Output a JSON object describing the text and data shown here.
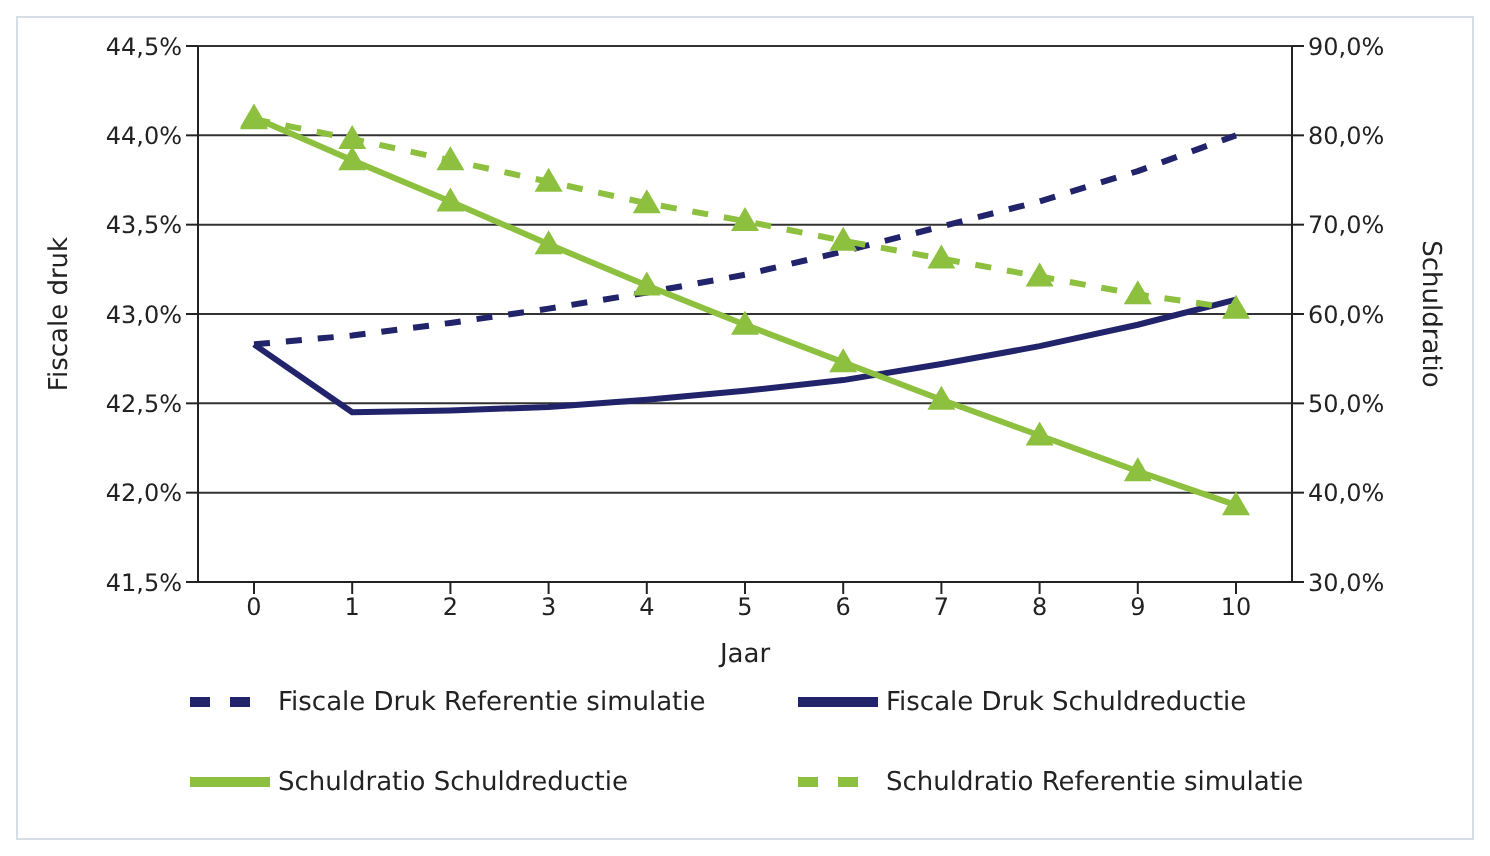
{
  "chart_data": {
    "type": "line",
    "xlabel": "Jaar",
    "ylabel": "Fiscale druk",
    "y2label": "Schuldratio",
    "categories": [
      "0",
      "1",
      "2",
      "3",
      "4",
      "5",
      "6",
      "7",
      "8",
      "9",
      "10"
    ],
    "ylim": [
      41.5,
      44.5
    ],
    "yticks": [
      {
        "value": 41.5,
        "label": "41,5%"
      },
      {
        "value": 42,
        "label": "42,0%"
      },
      {
        "value": 42.5,
        "label": "42,5%"
      },
      {
        "value": 43,
        "label": "43,0%"
      },
      {
        "value": 43.5,
        "label": "43,5%"
      },
      {
        "value": 44,
        "label": "44,0%"
      },
      {
        "value": 44.5,
        "label": "44,5%"
      }
    ],
    "y2lim": [
      30,
      90
    ],
    "y2ticks": [
      {
        "value": 30,
        "label": "30,0%"
      },
      {
        "value": 40,
        "label": "40,0%"
      },
      {
        "value": 50,
        "label": "50,0%"
      },
      {
        "value": 60,
        "label": "60,0%"
      },
      {
        "value": 70,
        "label": "70,0%"
      },
      {
        "value": 80,
        "label": "80,0%"
      },
      {
        "value": 90,
        "label": "90,0%"
      }
    ],
    "grid": "y",
    "legend": "bottom",
    "series": [
      {
        "name": "Fiscale Druk Referentie simulatie",
        "color": "#22246b",
        "line_style": "dashed",
        "marker": "none",
        "values": [
          42.83,
          42.88,
          42.95,
          43.03,
          43.12,
          43.22,
          43.35,
          43.49,
          43.63,
          43.8,
          44.0
        ]
      },
      {
        "name": "Fiscale Druk Schuldreductie",
        "color": "#22246b",
        "line_style": "solid",
        "marker": "none",
        "values": [
          42.83,
          42.45,
          42.46,
          42.48,
          42.52,
          42.57,
          42.63,
          42.72,
          42.82,
          42.94,
          43.08
        ]
      },
      {
        "name": "Schuldratio Schuldreductie",
        "color": "#8dc03f",
        "line_style": "solid",
        "marker": "triangle",
        "axis": "y2",
        "values": [
          82.0,
          77.2,
          72.6,
          67.8,
          63.2,
          58.8,
          54.6,
          50.4,
          46.4,
          42.4,
          38.6
        ]
      },
      {
        "name": "Schuldratio Referentie simulatie",
        "color": "#8dc03f",
        "line_style": "dashed",
        "marker": "triangle",
        "axis": "y2",
        "values": [
          81.8,
          79.6,
          77.2,
          74.8,
          72.4,
          70.4,
          68.2,
          66.2,
          64.2,
          62.2,
          60.6
        ]
      }
    ]
  }
}
